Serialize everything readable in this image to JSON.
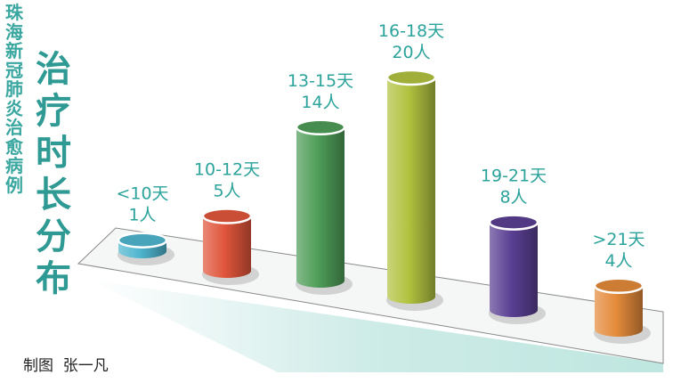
{
  "header": {
    "subtitle": "珠海新冠肺炎治愈病例",
    "title": "治疗时长分布"
  },
  "credit": "制图  张一凡",
  "colors": {
    "accent": "#2ca39b",
    "bars": [
      "#4fb6cf",
      "#e0553b",
      "#4e9d58",
      "#b1c23f",
      "#5a3f93",
      "#e48a3a"
    ]
  },
  "chart_data": {
    "type": "bar",
    "categories": [
      "<10天",
      "10-12天",
      "13-15天",
      "16-18天",
      "19-21天",
      ">21天"
    ],
    "values": [
      1,
      5,
      14,
      20,
      8,
      4
    ],
    "value_labels": [
      "1人",
      "5人",
      "14人",
      "20人",
      "8人",
      "4人"
    ],
    "title": "治疗时长分布",
    "subtitle": "珠海新冠肺炎治愈病例",
    "unit": "人"
  }
}
